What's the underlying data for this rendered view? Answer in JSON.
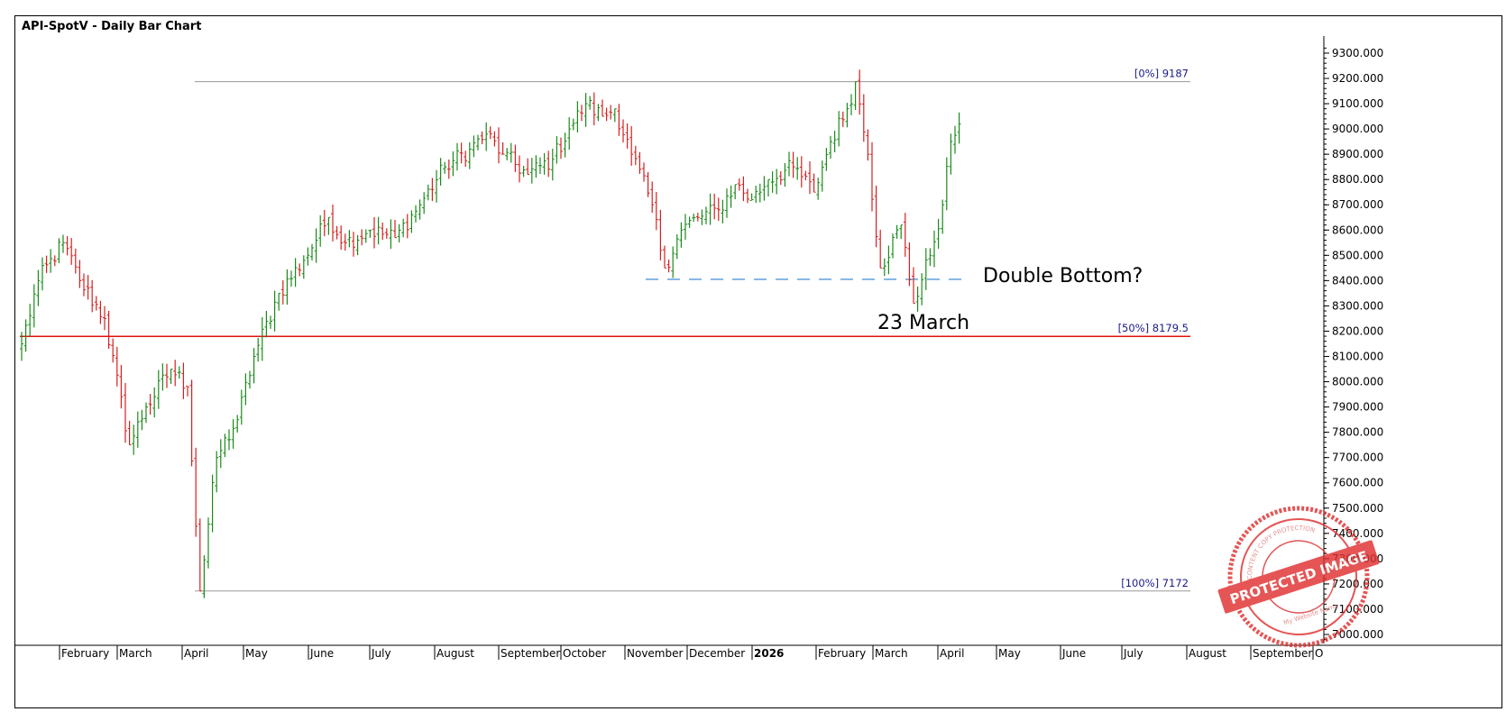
{
  "title": "API-SpotV - Daily Bar Chart",
  "chart_data": {
    "type": "ohlc",
    "title": "API-SpotV - Daily Bar Chart",
    "ylim": [
      6960,
      9340
    ],
    "yticks": [
      7000,
      7100,
      7200,
      7300,
      7400,
      7500,
      7600,
      7700,
      7800,
      7900,
      8000,
      8100,
      8200,
      8300,
      8400,
      8500,
      8600,
      8700,
      8800,
      8900,
      9000,
      9100,
      9200,
      9300
    ],
    "ytick_format": "0.000",
    "xlabels": [
      {
        "label": "February",
        "bold": false
      },
      {
        "label": "March",
        "bold": false
      },
      {
        "label": "April",
        "bold": false
      },
      {
        "label": "May",
        "bold": false
      },
      {
        "label": "June",
        "bold": false
      },
      {
        "label": "July",
        "bold": false
      },
      {
        "label": "August",
        "bold": false
      },
      {
        "label": "September",
        "bold": false
      },
      {
        "label": "October",
        "bold": false
      },
      {
        "label": "November",
        "bold": false
      },
      {
        "label": "December",
        "bold": false
      },
      {
        "label": "2026",
        "bold": true
      },
      {
        "label": "February",
        "bold": false
      },
      {
        "label": "March",
        "bold": false
      },
      {
        "label": "April",
        "bold": false
      },
      {
        "label": "May",
        "bold": false
      },
      {
        "label": "June",
        "bold": false
      },
      {
        "label": "July",
        "bold": false
      },
      {
        "label": "August",
        "bold": false
      },
      {
        "label": "September",
        "bold": false
      },
      {
        "label": "O",
        "bold": false
      }
    ],
    "price_path": [
      [
        0,
        8150
      ],
      [
        4,
        8400
      ],
      [
        10,
        8550
      ],
      [
        14,
        8400
      ],
      [
        20,
        8250
      ],
      [
        26,
        7750
      ],
      [
        30,
        7900
      ],
      [
        36,
        8050
      ],
      [
        40,
        7980
      ],
      [
        43,
        7172
      ],
      [
        47,
        7700
      ],
      [
        52,
        7850
      ],
      [
        56,
        8100
      ],
      [
        62,
        8350
      ],
      [
        68,
        8480
      ],
      [
        74,
        8650
      ],
      [
        78,
        8550
      ],
      [
        84,
        8600
      ],
      [
        90,
        8570
      ],
      [
        96,
        8700
      ],
      [
        102,
        8850
      ],
      [
        108,
        8920
      ],
      [
        112,
        8980
      ],
      [
        116,
        8900
      ],
      [
        122,
        8820
      ],
      [
        128,
        8880
      ],
      [
        132,
        9000
      ],
      [
        136,
        9100
      ],
      [
        140,
        9050
      ],
      [
        143,
        9080
      ],
      [
        147,
        8900
      ],
      [
        152,
        8700
      ],
      [
        155,
        8450
      ],
      [
        159,
        8600
      ],
      [
        163,
        8650
      ],
      [
        168,
        8680
      ],
      [
        172,
        8780
      ],
      [
        176,
        8720
      ],
      [
        180,
        8800
      ],
      [
        186,
        8850
      ],
      [
        191,
        8750
      ],
      [
        195,
        8950
      ],
      [
        199,
        9080
      ],
      [
        201,
        9187
      ],
      [
        204,
        8900
      ],
      [
        207,
        8450
      ],
      [
        212,
        8620
      ],
      [
        215,
        8310
      ],
      [
        219,
        8500
      ],
      [
        222,
        8700
      ],
      [
        224,
        8950
      ],
      [
        226,
        9020
      ]
    ],
    "bar_colors": {
      "up": "#1a8a1a",
      "down": "#d42020"
    },
    "levels": [
      {
        "label": "[0%] 9187",
        "value": 9187,
        "color": "#9a9a9a"
      },
      {
        "label": "[50%] 8179.5",
        "value": 8179.5,
        "color": "#e01010"
      },
      {
        "label": "[100%] 7172",
        "value": 7172,
        "color": "#9a9a9a"
      }
    ],
    "support_line": {
      "value": 8405,
      "color": "#2a7fd0",
      "style": "dashed"
    },
    "annotations": [
      "Double Bottom?",
      "23 March"
    ]
  },
  "watermark": {
    "text": "PROTECTED IMAGE",
    "ring_text": "CONTENT COPY PROTECTION",
    "sub_text": "My Website Name",
    "color": "#e03030"
  }
}
